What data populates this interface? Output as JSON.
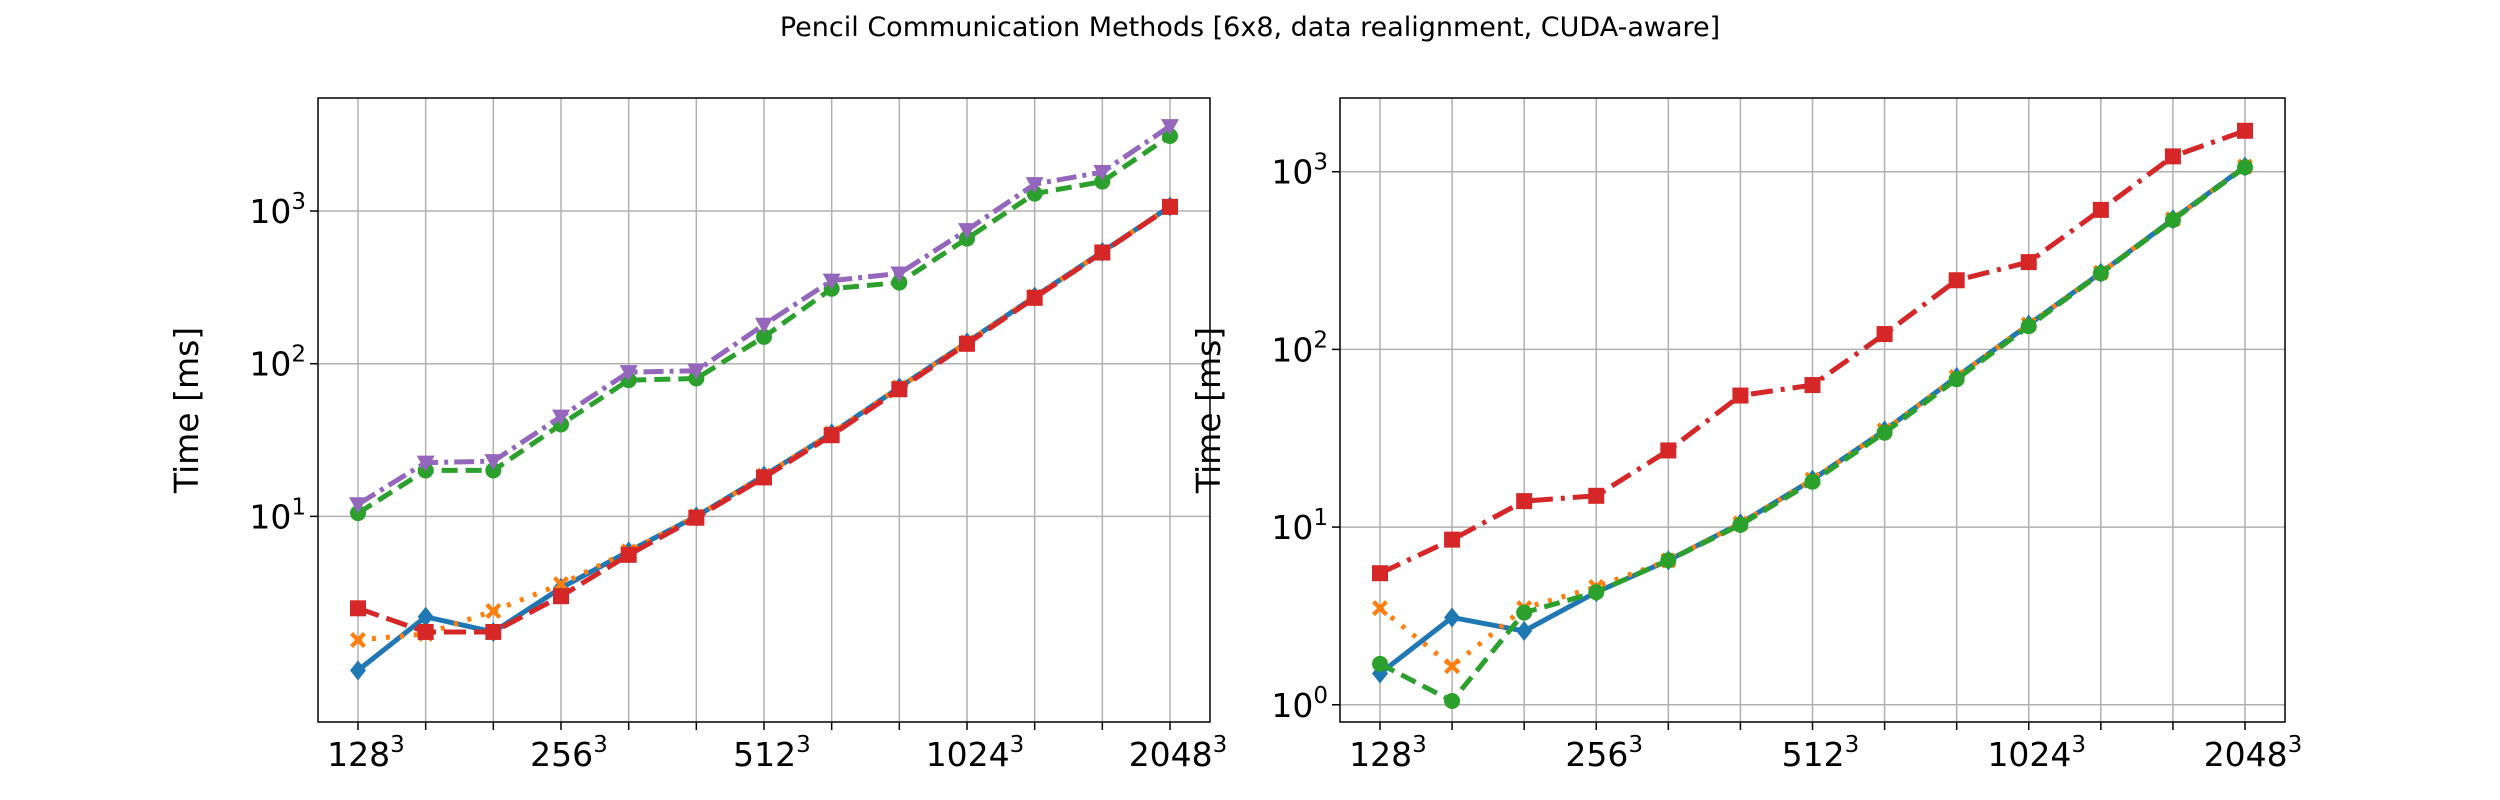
{
  "figure": {
    "title": "Pencil Communication Methods [6x8, data realignment, CUDA-aware]"
  },
  "chart_data": [
    {
      "type": "line",
      "panel": "left",
      "ylabel": "Time [ms]",
      "yscale": "log",
      "ylim": [
        0.45,
        5500
      ],
      "grid": true,
      "x": [
        128,
        161,
        203,
        256,
        323,
        406,
        512,
        645,
        813,
        1024,
        1290,
        1625,
        2048
      ],
      "xticks": [
        128,
        256,
        512,
        1024,
        2048
      ],
      "xtick_labels": [
        {
          "base": "128",
          "exp": "3"
        },
        {
          "base": "256",
          "exp": "3"
        },
        {
          "base": "512",
          "exp": "3"
        },
        {
          "base": "1024",
          "exp": "3"
        },
        {
          "base": "2048",
          "exp": "3"
        }
      ],
      "yticks": [
        10,
        100,
        1000
      ],
      "ytick_labels": [
        {
          "base": "10",
          "exp": "1"
        },
        {
          "base": "10",
          "exp": "2"
        },
        {
          "base": "10",
          "exp": "3"
        }
      ],
      "series": [
        {
          "color": "#1f77b4",
          "dash": "",
          "marker": "diamond",
          "values": [
            0.98,
            2.2,
            1.75,
            3.4,
            5.9,
            10,
            18.5,
            35,
            70,
            138,
            275,
            540,
            1070
          ]
        },
        {
          "color": "#ff7f0e",
          "dash": "4 10",
          "marker": "x",
          "values": [
            1.55,
            1.7,
            2.4,
            3.6,
            5.9,
            10,
            18.5,
            35,
            70,
            138,
            275,
            540,
            1070
          ]
        },
        {
          "color": "#2ca02c",
          "dash": "16 8",
          "marker": "circle",
          "values": [
            10.5,
            20,
            20,
            40,
            78,
            80,
            150,
            310,
            340,
            660,
            1300,
            1560,
            3100
          ]
        },
        {
          "color": "#d62728",
          "dash": "22 8",
          "marker": "square",
          "values": [
            2.5,
            1.75,
            1.75,
            3.0,
            5.6,
            9.8,
            18.0,
            34,
            68,
            135,
            270,
            535,
            1065
          ]
        },
        {
          "color": "#9467bd",
          "dash": "20 6 4 6",
          "marker": "triangle-down",
          "values": [
            12,
            22.5,
            23,
            45,
            88,
            90,
            180,
            350,
            390,
            750,
            1500,
            1800,
            3600
          ]
        }
      ]
    },
    {
      "type": "line",
      "panel": "right",
      "ylabel": "Time [ms]",
      "yscale": "log",
      "ylim": [
        0.8,
        2600
      ],
      "grid": true,
      "x": [
        128,
        161,
        203,
        256,
        323,
        406,
        512,
        645,
        813,
        1024,
        1290,
        1625,
        2048
      ],
      "xticks": [
        128,
        256,
        512,
        1024,
        2048
      ],
      "xtick_labels": [
        {
          "base": "128",
          "exp": "3"
        },
        {
          "base": "256",
          "exp": "3"
        },
        {
          "base": "512",
          "exp": "3"
        },
        {
          "base": "1024",
          "exp": "3"
        },
        {
          "base": "2048",
          "exp": "3"
        }
      ],
      "yticks": [
        1,
        10,
        100,
        1000
      ],
      "ytick_labels": [
        {
          "base": "10",
          "exp": "0"
        },
        {
          "base": "10",
          "exp": "1"
        },
        {
          "base": "10",
          "exp": "2"
        },
        {
          "base": "10",
          "exp": "3"
        }
      ],
      "series": [
        {
          "color": "#1f77b4",
          "dash": "",
          "marker": "diamond",
          "values": [
            1.5,
            3.1,
            2.6,
            4.3,
            6.5,
            10.5,
            18.5,
            35,
            70,
            138,
            270,
            540,
            1070
          ]
        },
        {
          "color": "#ff7f0e",
          "dash": "4 10",
          "marker": "x",
          "values": [
            3.5,
            1.65,
            3.5,
            4.6,
            6.5,
            10.5,
            18.5,
            35,
            70,
            138,
            270,
            540,
            1070
          ]
        },
        {
          "color": "#2ca02c",
          "dash": "16 8",
          "marker": "circle",
          "values": [
            1.7,
            1.05,
            3.3,
            4.3,
            6.5,
            10.3,
            18.0,
            34,
            68,
            135,
            268,
            535,
            1060
          ]
        },
        {
          "color": "#d62728",
          "dash": "22 8 4 8",
          "marker": "square",
          "values": [
            5.5,
            8.5,
            14,
            15,
            27,
            55,
            63,
            122,
            245,
            310,
            610,
            1220,
            1700
          ]
        }
      ]
    }
  ]
}
